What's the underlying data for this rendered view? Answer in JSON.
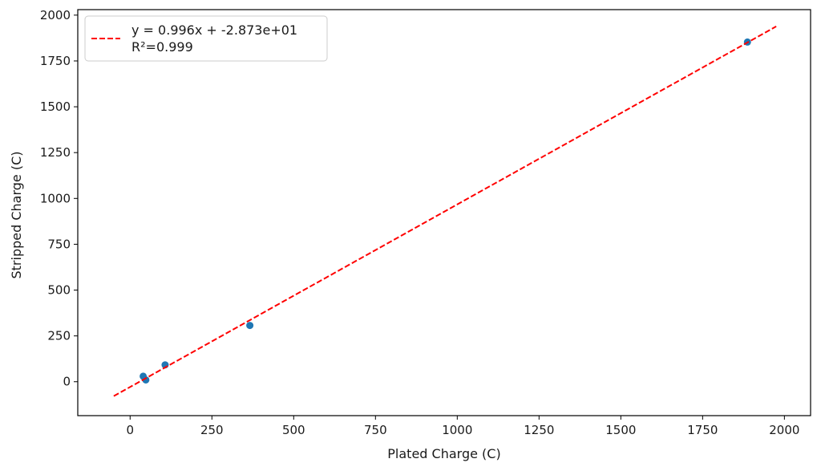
{
  "chart_data": {
    "type": "scatter",
    "xlabel": "Plated Charge (C)",
    "ylabel": "Stripped Charge (C)",
    "xlim": [
      -160,
      2080
    ],
    "ylim": [
      -185,
      2030
    ],
    "xticks": [
      0,
      250,
      500,
      750,
      1000,
      1250,
      1500,
      1750,
      2000
    ],
    "yticks": [
      0,
      250,
      500,
      750,
      1000,
      1250,
      1500,
      1750,
      2000
    ],
    "grid": false,
    "legend_position": "top-left",
    "series": [
      {
        "kind": "points",
        "color": "#1f77b4",
        "points": [
          {
            "x": 40,
            "y": 30
          },
          {
            "x": 48,
            "y": 10
          },
          {
            "x": 107,
            "y": 92
          },
          {
            "x": 366,
            "y": 307
          },
          {
            "x": 1887,
            "y": 1853
          }
        ]
      },
      {
        "kind": "fit-line",
        "name": "y = 0.996x + -2.873e+01",
        "color": "#ff0000",
        "dash": "dashed",
        "slope": 0.996,
        "intercept": -28.73,
        "x_range": [
          -50,
          1975
        ]
      }
    ],
    "legend": {
      "line1": "y = 0.996x + -2.873e+01",
      "line2": "R²=0.999"
    }
  }
}
